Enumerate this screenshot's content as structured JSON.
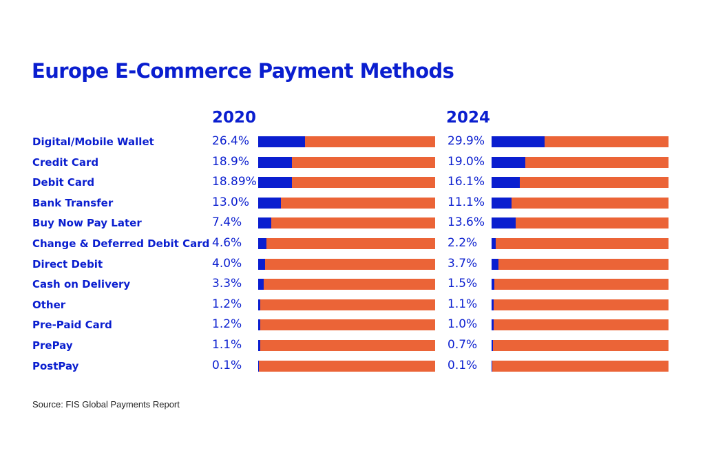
{
  "chart_data": {
    "type": "bar",
    "title": "Europe E-Commerce Payment Methods",
    "categories": [
      "Digital/Mobile Wallet",
      "Credit Card",
      "Debit Card",
      "Bank Transfer",
      "Buy Now Pay Later",
      "Change & Deferred Debit Card",
      "Direct Debit",
      "Cash on Delivery",
      "Other",
      "Pre-Paid Card",
      "PrePay",
      "PostPay"
    ],
    "series": [
      {
        "name": "2020",
        "values": [
          26.4,
          18.9,
          18.89,
          13.0,
          7.4,
          4.6,
          4.0,
          3.3,
          1.2,
          1.2,
          1.1,
          0.1
        ],
        "labels": [
          "26.4%",
          "18.9%",
          "18.89%",
          "13.0%",
          "7.4%",
          "4.6%",
          "4.0%",
          "3.3%",
          "1.2%",
          "1.2%",
          "1.1%",
          "0.1%"
        ]
      },
      {
        "name": "2024",
        "values": [
          29.9,
          19.0,
          16.1,
          11.1,
          13.6,
          2.2,
          3.7,
          1.5,
          1.1,
          1.0,
          0.7,
          0.1
        ],
        "labels": [
          "29.9%",
          "19.0%",
          "16.1%",
          "11.1%",
          "13.6%",
          "2.2%",
          "3.7%",
          "1.5%",
          "1.1%",
          "1.0%",
          "0.7%",
          "0.1%"
        ]
      }
    ],
    "ylim": [
      0,
      100
    ],
    "colors": {
      "value": "#0a1ecf",
      "remainder": "#eb6437"
    },
    "source": "Source: FIS Global Payments Report"
  }
}
